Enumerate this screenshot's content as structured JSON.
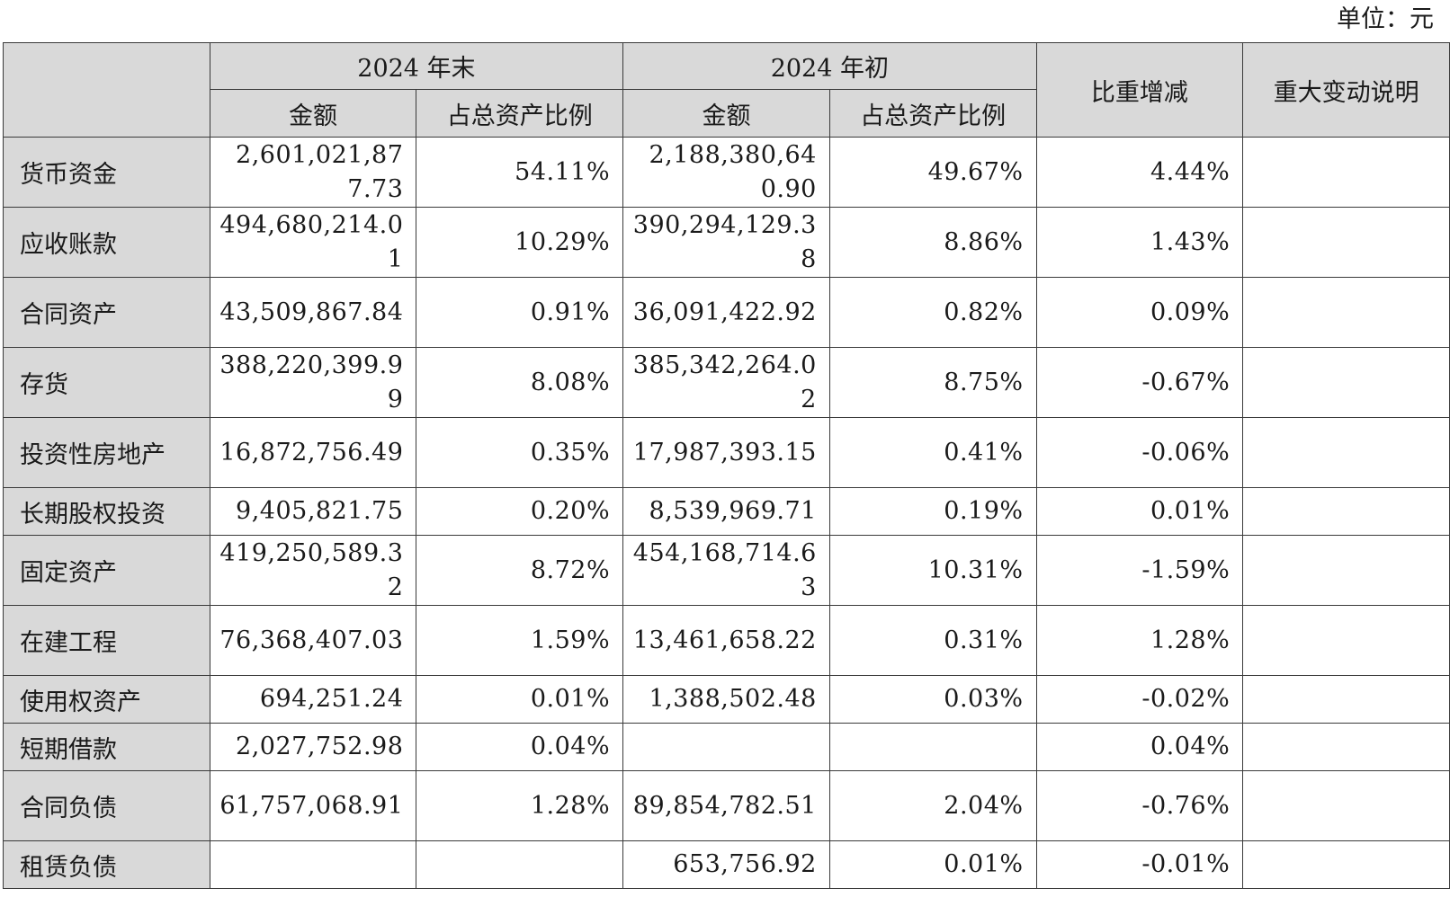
{
  "unit_label": "单位：元",
  "headers": {
    "year_end": "2024 年末",
    "year_begin": "2024 年初",
    "amount": "金额",
    "ratio": "占总资产比例",
    "change": "比重增减",
    "explain": "重大变动说明"
  },
  "rows": [
    {
      "name": "货币资金",
      "end_amt": "2,601,021,877.73",
      "end_pct": "54.11%",
      "beg_amt": "2,188,380,640.90",
      "beg_pct": "49.67%",
      "change": "4.44%",
      "note": ""
    },
    {
      "name": "应收账款",
      "end_amt": "494,680,214.01",
      "end_pct": "10.29%",
      "beg_amt": "390,294,129.38",
      "beg_pct": "8.86%",
      "change": "1.43%",
      "note": ""
    },
    {
      "name": "合同资产",
      "end_amt": "43,509,867.84",
      "end_pct": "0.91%",
      "beg_amt": "36,091,422.92",
      "beg_pct": "0.82%",
      "change": "0.09%",
      "note": ""
    },
    {
      "name": "存货",
      "end_amt": "388,220,399.99",
      "end_pct": "8.08%",
      "beg_amt": "385,342,264.02",
      "beg_pct": "8.75%",
      "change": "-0.67%",
      "note": ""
    },
    {
      "name": "投资性房地产",
      "end_amt": "16,872,756.49",
      "end_pct": "0.35%",
      "beg_amt": "17,987,393.15",
      "beg_pct": "0.41%",
      "change": "-0.06%",
      "note": ""
    },
    {
      "name": "长期股权投资",
      "end_amt": "9,405,821.75",
      "end_pct": "0.20%",
      "beg_amt": "8,539,969.71",
      "beg_pct": "0.19%",
      "change": "0.01%",
      "note": ""
    },
    {
      "name": "固定资产",
      "end_amt": "419,250,589.32",
      "end_pct": "8.72%",
      "beg_amt": "454,168,714.63",
      "beg_pct": "10.31%",
      "change": "-1.59%",
      "note": ""
    },
    {
      "name": "在建工程",
      "end_amt": "76,368,407.03",
      "end_pct": "1.59%",
      "beg_amt": "13,461,658.22",
      "beg_pct": "0.31%",
      "change": "1.28%",
      "note": ""
    },
    {
      "name": "使用权资产",
      "end_amt": "694,251.24",
      "end_pct": "0.01%",
      "beg_amt": "1,388,502.48",
      "beg_pct": "0.03%",
      "change": "-0.02%",
      "note": ""
    },
    {
      "name": "短期借款",
      "end_amt": "2,027,752.98",
      "end_pct": "0.04%",
      "beg_amt": "",
      "beg_pct": "",
      "change": "0.04%",
      "note": ""
    },
    {
      "name": "合同负债",
      "end_amt": "61,757,068.91",
      "end_pct": "1.28%",
      "beg_amt": "89,854,782.51",
      "beg_pct": "2.04%",
      "change": "-0.76%",
      "note": ""
    },
    {
      "name": "租赁负债",
      "end_amt": "",
      "end_pct": "",
      "beg_amt": "653,756.92",
      "beg_pct": "0.01%",
      "change": "-0.01%",
      "note": ""
    }
  ]
}
